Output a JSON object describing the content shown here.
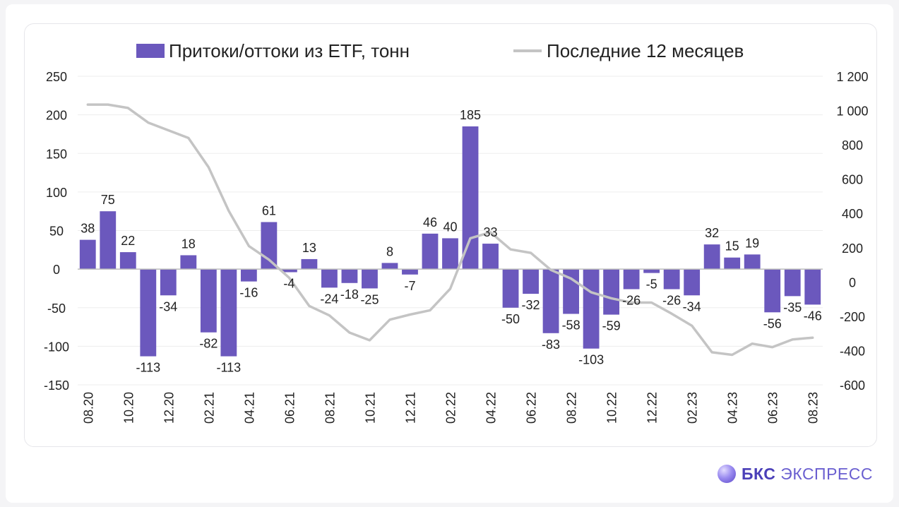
{
  "brand": {
    "name_bold": "БКС",
    "name_light": "ЭКСПРЕСС"
  },
  "chart_data": {
    "type": "bar",
    "legend": {
      "placement": "top"
    },
    "colors": {
      "bar": "#6b58bd",
      "line": "#c4c4c4",
      "grid": "#ededed"
    },
    "categories": [
      "08.20",
      "09.20",
      "10.20",
      "11.20",
      "12.20",
      "01.21",
      "02.21",
      "03.21",
      "04.21",
      "05.21",
      "06.21",
      "07.21",
      "08.21",
      "09.21",
      "10.21",
      "11.21",
      "12.21",
      "01.22",
      "02.22",
      "03.22",
      "04.22",
      "05.22",
      "06.22",
      "07.22",
      "08.22",
      "09.22",
      "10.22",
      "11.22",
      "12.22",
      "01.23",
      "02.23",
      "03.23",
      "04.23",
      "05.23",
      "06.23",
      "07.23",
      "08.23"
    ],
    "x_tick_labels": [
      "08.20",
      "",
      "10.20",
      "",
      "12.20",
      "",
      "02.21",
      "",
      "04.21",
      "",
      "06.21",
      "",
      "08.21",
      "",
      "10.21",
      "",
      "12.21",
      "",
      "02.22",
      "",
      "04.22",
      "",
      "06.22",
      "",
      "08.22",
      "",
      "10.22",
      "",
      "12.22",
      "",
      "02.23",
      "",
      "04.23",
      "",
      "06.23",
      "",
      "08.23"
    ],
    "series": [
      {
        "name": "Притоки/оттоки из ETF, тонн",
        "type": "bar",
        "axis": "left",
        "values": [
          38,
          75,
          22,
          -113,
          -34,
          18,
          -82,
          -113,
          -16,
          61,
          -4,
          13,
          -24,
          -18,
          -25,
          8,
          -7,
          46,
          40,
          185,
          33,
          -50,
          -32,
          -83,
          -58,
          -103,
          -59,
          -26,
          -5,
          -26,
          -34,
          32,
          15,
          19,
          -56,
          -35,
          -46
        ],
        "labels": [
          "38",
          "75",
          "22",
          "-113",
          "-34",
          "18",
          "-82",
          "-113",
          "-16",
          "61",
          "-4",
          "13",
          "-24",
          "-18",
          "-25",
          "8",
          "-7",
          "46",
          "40",
          "185",
          "33",
          "-50",
          "-32",
          "-83",
          "-58",
          "-103",
          "-59",
          "-26",
          "-5",
          "-26",
          "-34",
          "32",
          "15",
          "19",
          "-56",
          "-35",
          "-46"
        ]
      },
      {
        "name": "Последние 12 месяцев",
        "type": "line",
        "axis": "right",
        "values": [
          1035,
          1035,
          1015,
          930,
          885,
          840,
          670,
          415,
          210,
          130,
          25,
          -140,
          -195,
          -295,
          -340,
          -220,
          -190,
          -165,
          -40,
          255,
          290,
          190,
          170,
          70,
          20,
          -60,
          -95,
          -120,
          -120,
          -185,
          -255,
          -410,
          -425,
          -360,
          -380,
          -335,
          -325
        ]
      }
    ],
    "y_left": {
      "min": -150,
      "max": 250,
      "ticks": [
        250,
        200,
        150,
        100,
        50,
        0,
        -50,
        -100,
        -150
      ],
      "tick_labels": [
        "250",
        "200",
        "150",
        "100",
        "50",
        "0",
        "-50",
        "-100",
        "-150"
      ]
    },
    "y_right": {
      "min": -600,
      "max": 1200,
      "ticks": [
        1200,
        1000,
        800,
        600,
        400,
        200,
        0,
        -200,
        -400,
        -600
      ],
      "tick_labels": [
        "1 200",
        "1 000",
        "800",
        "600",
        "400",
        "200",
        "0",
        "-200",
        "-400",
        "-600"
      ]
    },
    "grid": true
  }
}
